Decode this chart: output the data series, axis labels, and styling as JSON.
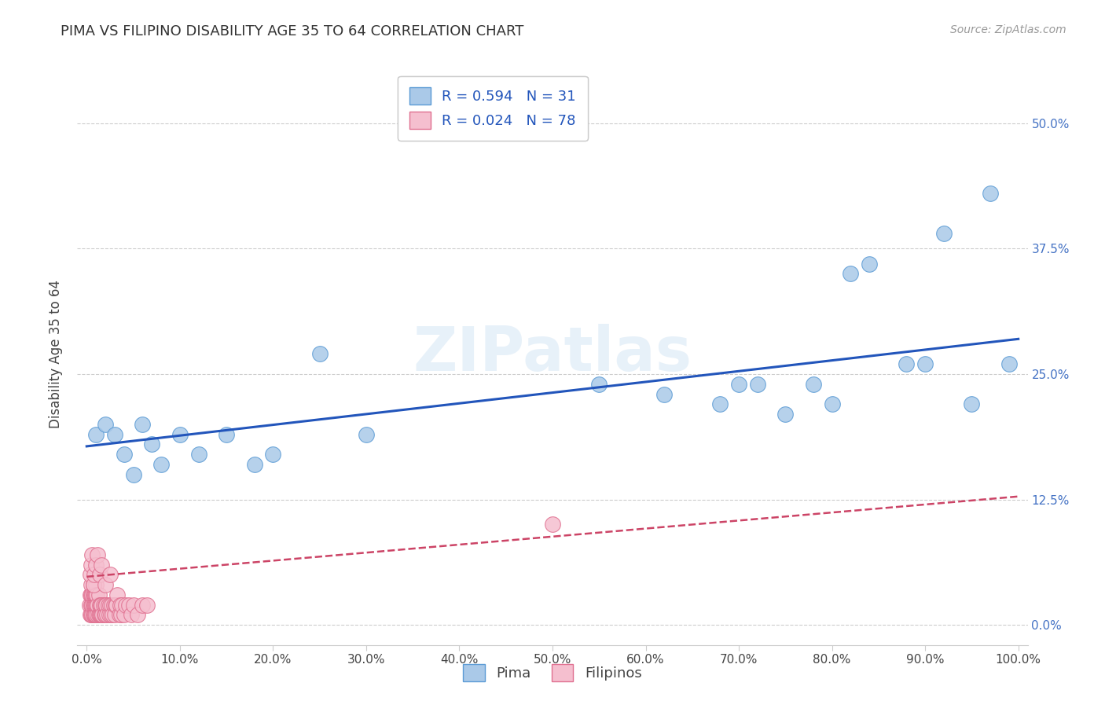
{
  "title": "PIMA VS FILIPINO DISABILITY AGE 35 TO 64 CORRELATION CHART",
  "source": "Source: ZipAtlas.com",
  "ylabel": "Disability Age 35 to 64",
  "watermark": "ZIPatlas",
  "pima_R": 0.594,
  "pima_N": 31,
  "filipino_R": 0.024,
  "filipino_N": 78,
  "pima_color": "#aac9e8",
  "pima_edge_color": "#5b9bd5",
  "filipino_color": "#f5bfcf",
  "filipino_edge_color": "#e07090",
  "trend_pima_color": "#2255bb",
  "trend_filipino_color": "#cc4466",
  "background_color": "#ffffff",
  "grid_color": "#cccccc",
  "xlim": [
    -0.01,
    1.01
  ],
  "ylim": [
    -0.02,
    0.56
  ],
  "xticks": [
    0.0,
    0.1,
    0.2,
    0.3,
    0.4,
    0.5,
    0.6,
    0.7,
    0.8,
    0.9,
    1.0
  ],
  "yticks": [
    0.0,
    0.125,
    0.25,
    0.375,
    0.5
  ],
  "pima_x": [
    0.01,
    0.02,
    0.03,
    0.04,
    0.05,
    0.06,
    0.07,
    0.08,
    0.1,
    0.12,
    0.15,
    0.18,
    0.2,
    0.25,
    0.3,
    0.55,
    0.62,
    0.68,
    0.7,
    0.72,
    0.75,
    0.78,
    0.8,
    0.82,
    0.84,
    0.88,
    0.9,
    0.92,
    0.95,
    0.97,
    0.99
  ],
  "pima_y": [
    0.19,
    0.2,
    0.19,
    0.17,
    0.15,
    0.2,
    0.18,
    0.16,
    0.19,
    0.17,
    0.19,
    0.16,
    0.17,
    0.27,
    0.19,
    0.24,
    0.23,
    0.22,
    0.24,
    0.24,
    0.21,
    0.24,
    0.22,
    0.35,
    0.36,
    0.26,
    0.26,
    0.39,
    0.22,
    0.43,
    0.26
  ],
  "filipino_x": [
    0.003,
    0.004,
    0.004,
    0.005,
    0.005,
    0.005,
    0.005,
    0.006,
    0.006,
    0.006,
    0.007,
    0.007,
    0.007,
    0.007,
    0.008,
    0.008,
    0.008,
    0.009,
    0.009,
    0.009,
    0.01,
    0.01,
    0.01,
    0.01,
    0.011,
    0.011,
    0.012,
    0.012,
    0.013,
    0.013,
    0.014,
    0.014,
    0.015,
    0.015,
    0.016,
    0.016,
    0.017,
    0.018,
    0.019,
    0.02,
    0.02,
    0.021,
    0.022,
    0.023,
    0.024,
    0.025,
    0.026,
    0.027,
    0.028,
    0.029,
    0.03,
    0.031,
    0.032,
    0.033,
    0.035,
    0.036,
    0.037,
    0.038,
    0.04,
    0.042,
    0.045,
    0.048,
    0.05,
    0.055,
    0.06,
    0.065,
    0.004,
    0.005,
    0.006,
    0.007,
    0.008,
    0.01,
    0.012,
    0.014,
    0.016,
    0.02,
    0.025,
    0.5
  ],
  "filipino_y": [
    0.02,
    0.03,
    0.01,
    0.01,
    0.02,
    0.03,
    0.04,
    0.01,
    0.02,
    0.03,
    0.01,
    0.02,
    0.03,
    0.04,
    0.01,
    0.02,
    0.03,
    0.01,
    0.02,
    0.03,
    0.01,
    0.02,
    0.03,
    0.04,
    0.02,
    0.03,
    0.01,
    0.02,
    0.01,
    0.03,
    0.01,
    0.02,
    0.01,
    0.02,
    0.01,
    0.02,
    0.01,
    0.02,
    0.01,
    0.01,
    0.02,
    0.02,
    0.01,
    0.02,
    0.01,
    0.02,
    0.01,
    0.02,
    0.01,
    0.02,
    0.01,
    0.02,
    0.02,
    0.03,
    0.01,
    0.02,
    0.01,
    0.02,
    0.01,
    0.02,
    0.02,
    0.01,
    0.02,
    0.01,
    0.02,
    0.02,
    0.05,
    0.06,
    0.07,
    0.04,
    0.05,
    0.06,
    0.07,
    0.05,
    0.06,
    0.04,
    0.05,
    0.1
  ],
  "trend_pima_x0": 0.0,
  "trend_pima_y0": 0.178,
  "trend_pima_x1": 1.0,
  "trend_pima_y1": 0.285,
  "trend_fil_x0": 0.0,
  "trend_fil_y0": 0.048,
  "trend_fil_x1": 1.0,
  "trend_fil_y1": 0.128
}
